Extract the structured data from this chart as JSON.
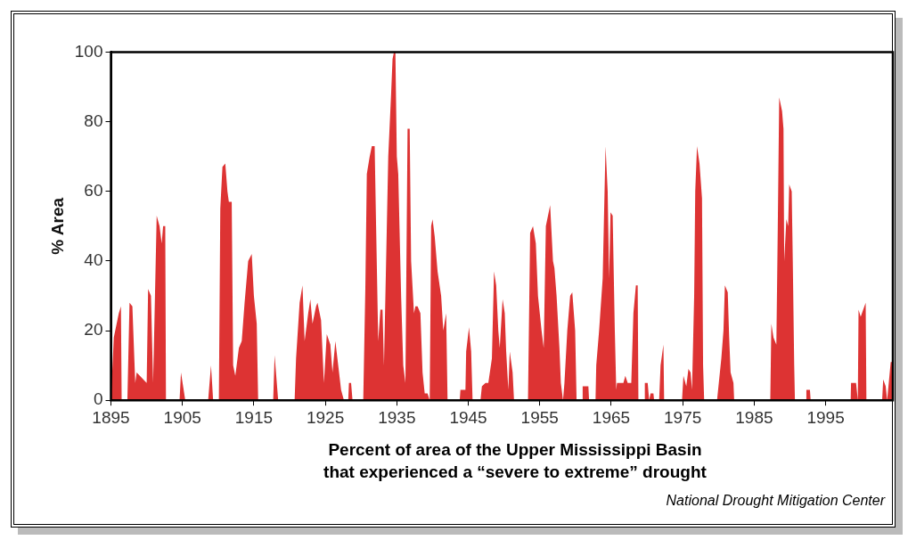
{
  "chart_data": {
    "type": "area",
    "title": "Percent of area of the Upper Mississippi Basin\nthat experienced a “severe to extreme” drought",
    "ylabel": "% Area",
    "annotations": [
      "National Drought Mitigation Center"
    ],
    "color": "#dd3333",
    "x": [
      1895.0,
      1895.4,
      1896.1,
      1896.4,
      1896.5,
      1897.3,
      1897.6,
      1898.0,
      1898.4,
      1898.6,
      1900.0,
      1900.2,
      1900.6,
      1900.9,
      1901.4,
      1901.8,
      1902.1,
      1902.3,
      1902.6,
      1902.7,
      1904.6,
      1904.8,
      1905.4,
      1908.6,
      1909.0,
      1909.3,
      1910.1,
      1910.3,
      1910.6,
      1911.0,
      1911.3,
      1911.5,
      1911.9,
      1912.1,
      1912.4,
      1912.9,
      1913.3,
      1913.7,
      1914.2,
      1914.7,
      1915.0,
      1915.4,
      1915.6,
      1917.7,
      1917.9,
      1918.4,
      1920.7,
      1920.9,
      1921.4,
      1921.8,
      1922.1,
      1922.6,
      1922.9,
      1923.2,
      1923.7,
      1923.9,
      1924.4,
      1924.8,
      1925.2,
      1925.7,
      1926.0,
      1926.4,
      1926.8,
      1927.2,
      1927.6,
      1928.2,
      1928.3,
      1928.6,
      1928.8,
      1930.3,
      1930.6,
      1930.8,
      1931.2,
      1931.5,
      1931.9,
      1932.1,
      1932.4,
      1932.7,
      1933.0,
      1933.2,
      1933.5,
      1933.8,
      1934.2,
      1934.4,
      1934.6,
      1934.8,
      1935.0,
      1935.2,
      1935.6,
      1935.9,
      1936.2,
      1936.5,
      1936.8,
      1937.0,
      1937.4,
      1937.6,
      1937.9,
      1938.3,
      1938.6,
      1938.9,
      1939.3,
      1939.6,
      1939.8,
      1940.0,
      1940.3,
      1940.7,
      1941.2,
      1941.5,
      1941.9,
      1942.1,
      1943.8,
      1943.9,
      1944.6,
      1944.7,
      1945.1,
      1945.4,
      1945.6,
      1946.7,
      1946.9,
      1947.4,
      1947.8,
      1948.3,
      1948.6,
      1948.9,
      1949.2,
      1949.4,
      1949.8,
      1950.1,
      1950.3,
      1950.6,
      1950.8,
      1951.2,
      1951.4,
      1953.35,
      1953.65,
      1954.05,
      1954.45,
      1954.75,
      1955.25,
      1955.55,
      1955.85,
      1956.15,
      1956.45,
      1956.85,
      1957.05,
      1957.35,
      1957.75,
      1957.95,
      1958.25,
      1958.45,
      1958.85,
      1959.25,
      1959.55,
      1959.95,
      1960.15,
      1960.9,
      1961.0,
      1961.8,
      1961.9,
      1962.8,
      1962.9,
      1963.3,
      1963.8,
      1964.2,
      1964.5,
      1964.7,
      1964.9,
      1965.2,
      1965.5,
      1965.7,
      1965.8,
      1966.05,
      1966.7,
      1966.97,
      1967.3,
      1967.8,
      1968.1,
      1968.45,
      1968.7,
      1968.8,
      1969.65,
      1969.7,
      1970.1,
      1970.3,
      1970.5,
      1970.9,
      1971.0,
      1971.7,
      1971.9,
      1972.3,
      1972.4,
      1974.9,
      1975.1,
      1975.5,
      1975.8,
      1976.1,
      1976.3,
      1976.6,
      1976.75,
      1977.0,
      1977.35,
      1977.7,
      1977.85,
      1978.0,
      1979.8,
      1980.1,
      1980.4,
      1980.7,
      1980.9,
      1981.3,
      1981.5,
      1981.7,
      1982.1,
      1982.2,
      1987.25,
      1987.4,
      1987.7,
      1988.1,
      1988.3,
      1988.5,
      1988.9,
      1989.1,
      1989.2,
      1989.5,
      1989.75,
      1989.9,
      1990.25,
      1990.4,
      1990.6,
      1990.7,
      1992.2,
      1992.3,
      1992.8,
      1992.9,
      1998.5,
      1998.55,
      1999.25,
      1999.5,
      1999.6,
      1999.9,
      2000.25,
      2000.6,
      2000.7,
      2002.9,
      2003.05,
      2003.4,
      2003.6,
      2004.1,
      2004.4
    ],
    "values": [
      0,
      18,
      25,
      27,
      0,
      0,
      28,
      27,
      5,
      8,
      5,
      32,
      30,
      5,
      53,
      50,
      45,
      50,
      50,
      0,
      0,
      8,
      0,
      0,
      10,
      0,
      0,
      55,
      67,
      68,
      60,
      57,
      57,
      10,
      7,
      15,
      17,
      28,
      40,
      42,
      30,
      22,
      0,
      0,
      13,
      0,
      0,
      12,
      28,
      33,
      17,
      25,
      29,
      22,
      27,
      28,
      23,
      5,
      19,
      16,
      8,
      17,
      10,
      3,
      0,
      0,
      5,
      5,
      0,
      0,
      33,
      65,
      70,
      73,
      73,
      50,
      17,
      26,
      26,
      10,
      40,
      70,
      88,
      98,
      100,
      100,
      70,
      65,
      30,
      10,
      5,
      78,
      78,
      40,
      25,
      27,
      27,
      25,
      8,
      2,
      2,
      0,
      50,
      52,
      47,
      37,
      30,
      20,
      25,
      0,
      0,
      3,
      3,
      14,
      21,
      14,
      0,
      0,
      4,
      5,
      5,
      12,
      37,
      33,
      20,
      15,
      29,
      25,
      14,
      3,
      14,
      8,
      0,
      0,
      48,
      50,
      45,
      30,
      20,
      15,
      50,
      53,
      56,
      40,
      38,
      30,
      15,
      5,
      0,
      5,
      20,
      30,
      31,
      20,
      0,
      0,
      4,
      4,
      0,
      0,
      10,
      20,
      35,
      73,
      60,
      35,
      54,
      53,
      20,
      3,
      5,
      5,
      5,
      7,
      5,
      5,
      25,
      33,
      33,
      0,
      0,
      5,
      5,
      0,
      2,
      2,
      0,
      0,
      10,
      16,
      0,
      0,
      7,
      4,
      9,
      8,
      3,
      30,
      60,
      73,
      68,
      58,
      10,
      0,
      0,
      6,
      12,
      20,
      33,
      31,
      18,
      8,
      5,
      0,
      0,
      22,
      18,
      16,
      50,
      87,
      83,
      78,
      40,
      52,
      50,
      62,
      60,
      40,
      10,
      0,
      0,
      3,
      3,
      0,
      0,
      5,
      5,
      0,
      26,
      24,
      26,
      28,
      0,
      0,
      6,
      4,
      0,
      11,
      11
    ],
    "xlim": [
      1895,
      2004.4
    ],
    "xticks": [
      1895,
      1905,
      1915,
      1925,
      1935,
      1945,
      1955,
      1965,
      1975,
      1985,
      1995
    ],
    "ylim": [
      0,
      100
    ],
    "yticks": [
      0,
      20,
      40,
      60,
      80,
      100
    ],
    "legend": false
  }
}
